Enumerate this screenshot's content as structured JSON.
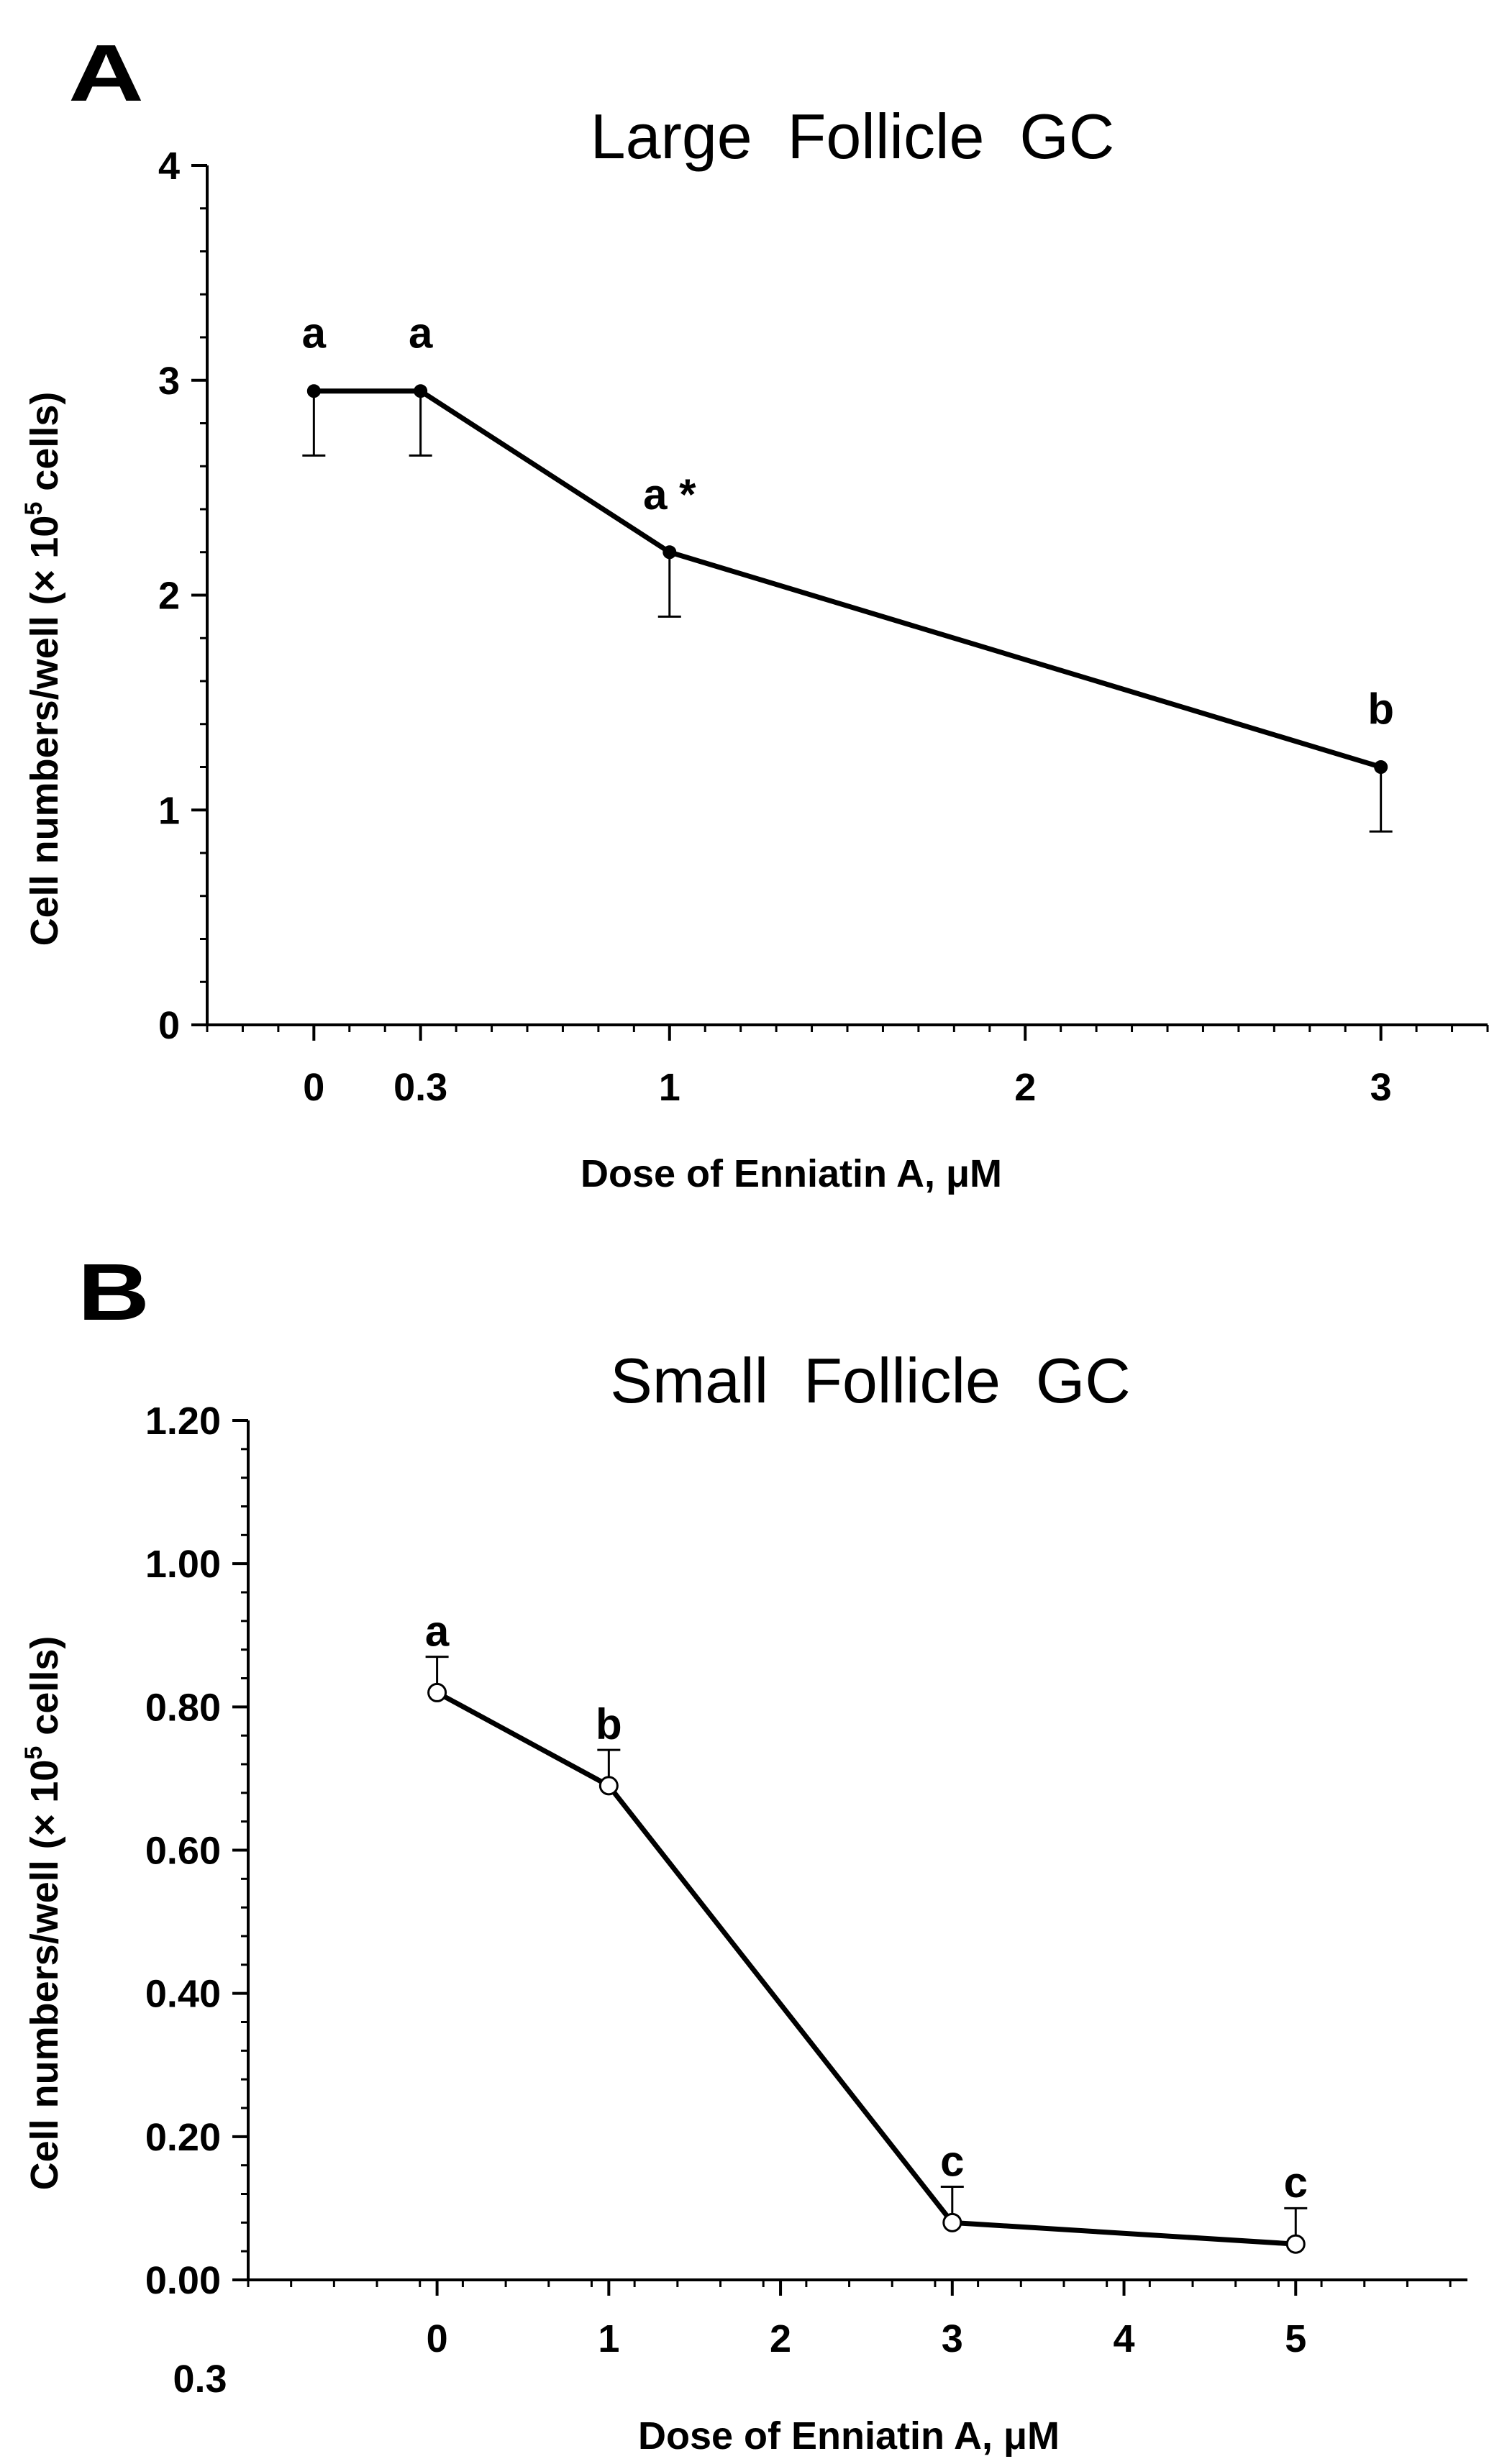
{
  "chart_data": [
    {
      "panel": "A",
      "type": "line",
      "title": "Large  Follicle  GC",
      "xlabel": "Dose of Enniatin A, μM",
      "ylabel_pre": "Cell numbers/well (× 10",
      "ylabel_sup": "5",
      "ylabel_post": " cells)",
      "xlim": [
        -0.3,
        3.3
      ],
      "ylim": [
        0,
        4
      ],
      "xticks": [
        0,
        0.3,
        1,
        2,
        3
      ],
      "xtick_labels": [
        "0",
        "0.3",
        "1",
        "2",
        "3"
      ],
      "yticks": [
        0,
        1,
        2,
        3,
        4
      ],
      "ytick_labels": [
        "0",
        "1",
        "2",
        "3",
        "4"
      ],
      "series": [
        {
          "name": "Large follicle GC",
          "marker": "filled-circle",
          "x": [
            0,
            0.3,
            1,
            3
          ],
          "y": [
            2.95,
            2.95,
            2.2,
            1.2
          ],
          "err": [
            0.3,
            0.3,
            0.3,
            0.3
          ],
          "err_dir": "down",
          "labels": [
            "a",
            "a",
            "a *",
            "b"
          ]
        }
      ]
    },
    {
      "panel": "B",
      "type": "line",
      "title": "Small  Follicle  GC",
      "xlabel": "Dose of Enniatin A, μM",
      "ylabel_pre": "Cell numbers/well (× 10",
      "ylabel_sup": "5",
      "ylabel_post": " cells)",
      "xlim": [
        -1.1,
        6
      ],
      "ylim": [
        0,
        1.2
      ],
      "xticks": [
        0,
        1,
        2,
        3,
        4,
        5
      ],
      "xtick_labels": [
        "0",
        "1",
        "2",
        "3",
        "4",
        "5"
      ],
      "extra_label": "0.3",
      "yticks": [
        0,
        0.2,
        0.4,
        0.6,
        0.8,
        1.0,
        1.2
      ],
      "ytick_labels": [
        "0.00",
        "0.20",
        "0.40",
        "0.60",
        "0.80",
        "1.00",
        "1.20"
      ],
      "series": [
        {
          "name": "Small follicle GC",
          "marker": "open-circle",
          "x": [
            0,
            1,
            3,
            5
          ],
          "y": [
            0.82,
            0.69,
            0.08,
            0.05
          ],
          "err": [
            0.05,
            0.05,
            0.05,
            0.05
          ],
          "err_dir": "up",
          "labels": [
            "a",
            "b",
            "c",
            "c"
          ]
        }
      ]
    }
  ]
}
